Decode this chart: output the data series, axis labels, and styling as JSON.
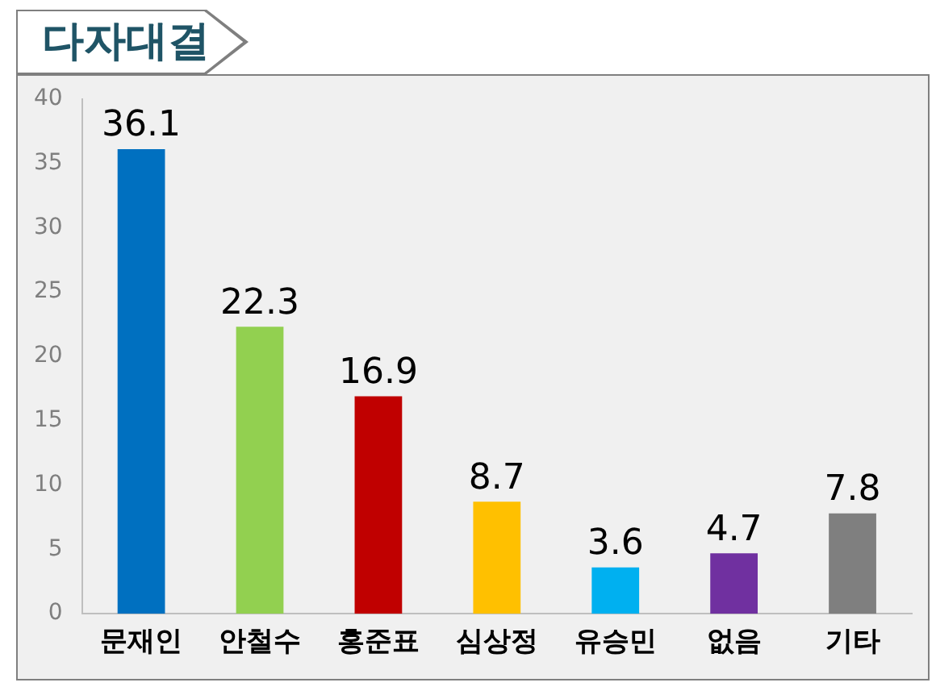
{
  "chart_data": {
    "type": "bar",
    "title": "다자대결",
    "categories": [
      "문재인",
      "안철수",
      "홍준표",
      "심상정",
      "유승민",
      "없음",
      "기타"
    ],
    "values": [
      36.1,
      22.3,
      16.9,
      8.7,
      3.6,
      4.7,
      7.8
    ],
    "colors": [
      "#0070c0",
      "#92d050",
      "#c00000",
      "#ffc000",
      "#00b0f0",
      "#7030a0",
      "#7f7f7f"
    ],
    "ylim": [
      0,
      40
    ],
    "yticks": [
      0,
      5,
      10,
      15,
      20,
      25,
      30,
      35,
      40
    ],
    "grid": false,
    "data_labels": true
  }
}
